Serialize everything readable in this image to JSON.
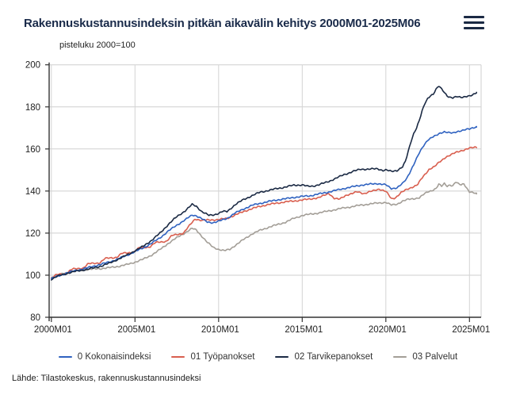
{
  "header": {
    "title": "Rakennuskustannusindeksin pitkän aikavälin kehitys 2000M01-2025M06",
    "menu_icon": "hamburger-menu-icon"
  },
  "chart_data": {
    "type": "line",
    "title": "Rakennuskustannusindeksin pitkän aikavälin kehitys 2000M01-2025M06",
    "unit_label": "pisteluku 2000=100",
    "xlabel": "",
    "ylabel": "pisteluku 2000=100",
    "ylim": [
      80,
      200
    ],
    "y_ticks": [
      80,
      100,
      120,
      140,
      160,
      180,
      200
    ],
    "x_ticks": [
      {
        "label": "2000M01",
        "year": 2000
      },
      {
        "label": "2005M01",
        "year": 2005
      },
      {
        "label": "2010M01",
        "year": 2010
      },
      {
        "label": "2015M01",
        "year": 2015
      },
      {
        "label": "2020M01",
        "year": 2020
      },
      {
        "label": "2025M01",
        "year": 2025
      }
    ],
    "x_range_years": [
      2000.0,
      2025.75
    ],
    "grid": true,
    "legend_position": "bottom",
    "series": [
      {
        "name": "0 Kokonaisindeksi",
        "color": "#2f62c0",
        "points": [
          [
            2000.0,
            98.4
          ],
          [
            2000.5,
            99.8
          ],
          [
            2001.0,
            101.3
          ],
          [
            2001.5,
            102.3
          ],
          [
            2002.0,
            103.2
          ],
          [
            2002.5,
            104.2
          ],
          [
            2003.0,
            105.3
          ],
          [
            2003.5,
            106.3
          ],
          [
            2004.0,
            107.8
          ],
          [
            2004.5,
            109.4
          ],
          [
            2005.0,
            111.2
          ],
          [
            2005.5,
            113.0
          ],
          [
            2006.0,
            115.2
          ],
          [
            2006.5,
            117.8
          ],
          [
            2007.0,
            121.0
          ],
          [
            2007.5,
            123.8
          ],
          [
            2008.0,
            126.3
          ],
          [
            2008.42,
            128.6
          ],
          [
            2008.67,
            128.3
          ],
          [
            2009.0,
            126.8
          ],
          [
            2009.33,
            125.2
          ],
          [
            2009.67,
            125.0
          ],
          [
            2010.0,
            125.6
          ],
          [
            2010.5,
            127.0
          ],
          [
            2011.0,
            129.6
          ],
          [
            2011.5,
            131.5
          ],
          [
            2012.0,
            133.2
          ],
          [
            2012.5,
            134.2
          ],
          [
            2013.0,
            135.0
          ],
          [
            2013.5,
            135.8
          ],
          [
            2014.0,
            136.3
          ],
          [
            2014.5,
            137.0
          ],
          [
            2015.0,
            137.4
          ],
          [
            2015.5,
            137.8
          ],
          [
            2016.0,
            138.6
          ],
          [
            2016.5,
            139.4
          ],
          [
            2017.0,
            140.3
          ],
          [
            2017.5,
            141.2
          ],
          [
            2018.0,
            142.0
          ],
          [
            2018.5,
            142.8
          ],
          [
            2019.0,
            143.2
          ],
          [
            2019.5,
            143.6
          ],
          [
            2020.0,
            142.9
          ],
          [
            2020.33,
            141.2
          ],
          [
            2020.67,
            141.6
          ],
          [
            2021.0,
            143.5
          ],
          [
            2021.25,
            146.0
          ],
          [
            2021.5,
            150.0
          ],
          [
            2021.75,
            154.0
          ],
          [
            2022.0,
            158.0
          ],
          [
            2022.25,
            161.5
          ],
          [
            2022.5,
            164.3
          ],
          [
            2022.75,
            165.5
          ],
          [
            2023.0,
            166.3
          ],
          [
            2023.25,
            167.5
          ],
          [
            2023.5,
            168.3
          ],
          [
            2023.75,
            167.8
          ],
          [
            2024.0,
            167.4
          ],
          [
            2024.25,
            168.2
          ],
          [
            2024.5,
            168.8
          ],
          [
            2024.75,
            169.2
          ],
          [
            2025.0,
            169.4
          ],
          [
            2025.42,
            170.6
          ]
        ]
      },
      {
        "name": "01 Työpanokset",
        "color": "#d95f4f",
        "points": [
          [
            2000.0,
            98.6
          ],
          [
            2000.3,
            100.2
          ],
          [
            2000.9,
            100.8
          ],
          [
            2001.2,
            102.8
          ],
          [
            2001.9,
            103.4
          ],
          [
            2002.2,
            105.4
          ],
          [
            2002.9,
            105.9
          ],
          [
            2003.2,
            107.9
          ],
          [
            2003.9,
            108.5
          ],
          [
            2004.2,
            110.3
          ],
          [
            2004.9,
            110.9
          ],
          [
            2005.2,
            112.8
          ],
          [
            2005.9,
            113.5
          ],
          [
            2006.2,
            115.4
          ],
          [
            2006.9,
            116.2
          ],
          [
            2007.2,
            118.8
          ],
          [
            2007.9,
            120.0
          ],
          [
            2008.2,
            123.0
          ],
          [
            2008.6,
            126.8
          ],
          [
            2009.0,
            126.0
          ],
          [
            2009.5,
            126.3
          ],
          [
            2010.0,
            126.4
          ],
          [
            2010.5,
            127.0
          ],
          [
            2011.0,
            128.6
          ],
          [
            2011.5,
            130.3
          ],
          [
            2012.0,
            131.6
          ],
          [
            2012.5,
            132.8
          ],
          [
            2013.0,
            133.6
          ],
          [
            2013.5,
            134.3
          ],
          [
            2014.0,
            134.8
          ],
          [
            2014.5,
            135.3
          ],
          [
            2015.0,
            135.7
          ],
          [
            2015.5,
            136.3
          ],
          [
            2016.0,
            136.8
          ],
          [
            2016.6,
            139.0
          ],
          [
            2016.9,
            136.5
          ],
          [
            2017.2,
            136.0
          ],
          [
            2017.6,
            138.0
          ],
          [
            2018.0,
            138.8
          ],
          [
            2018.3,
            139.7
          ],
          [
            2018.7,
            138.8
          ],
          [
            2019.0,
            139.5
          ],
          [
            2019.6,
            141.0
          ],
          [
            2020.0,
            139.8
          ],
          [
            2020.35,
            136.2
          ],
          [
            2020.6,
            137.0
          ],
          [
            2020.9,
            139.2
          ],
          [
            2021.2,
            140.5
          ],
          [
            2021.6,
            142.0
          ],
          [
            2021.9,
            143.0
          ],
          [
            2022.1,
            145.5
          ],
          [
            2022.4,
            148.5
          ],
          [
            2022.6,
            150.5
          ],
          [
            2022.9,
            151.5
          ],
          [
            2023.1,
            153.0
          ],
          [
            2023.4,
            155.0
          ],
          [
            2023.6,
            156.3
          ],
          [
            2023.9,
            157.2
          ],
          [
            2024.1,
            158.0
          ],
          [
            2024.4,
            159.0
          ],
          [
            2024.7,
            159.6
          ],
          [
            2025.0,
            160.3
          ],
          [
            2025.42,
            161.0
          ]
        ]
      },
      {
        "name": "02 Tarvikepanokset",
        "color": "#1b2a44",
        "points": [
          [
            2000.0,
            98.1
          ],
          [
            2000.5,
            99.9
          ],
          [
            2001.0,
            101.0
          ],
          [
            2001.5,
            101.9
          ],
          [
            2002.0,
            102.6
          ],
          [
            2002.5,
            103.4
          ],
          [
            2003.0,
            104.4
          ],
          [
            2003.5,
            105.8
          ],
          [
            2004.0,
            107.6
          ],
          [
            2004.5,
            109.5
          ],
          [
            2005.0,
            111.6
          ],
          [
            2005.5,
            113.8
          ],
          [
            2006.0,
            116.6
          ],
          [
            2006.5,
            120.0
          ],
          [
            2007.0,
            124.2
          ],
          [
            2007.5,
            127.8
          ],
          [
            2008.0,
            130.6
          ],
          [
            2008.42,
            133.6
          ],
          [
            2008.67,
            132.8
          ],
          [
            2009.0,
            130.2
          ],
          [
            2009.42,
            128.4
          ],
          [
            2009.75,
            128.8
          ],
          [
            2010.0,
            129.4
          ],
          [
            2010.25,
            130.3
          ],
          [
            2010.5,
            130.2
          ],
          [
            2011.0,
            133.6
          ],
          [
            2011.5,
            136.0
          ],
          [
            2012.0,
            137.8
          ],
          [
            2012.5,
            139.5
          ],
          [
            2013.0,
            140.3
          ],
          [
            2013.5,
            141.2
          ],
          [
            2014.0,
            141.9
          ],
          [
            2014.5,
            142.8
          ],
          [
            2015.0,
            142.9
          ],
          [
            2015.33,
            142.2
          ],
          [
            2015.67,
            142.4
          ],
          [
            2016.0,
            143.0
          ],
          [
            2016.5,
            144.3
          ],
          [
            2017.0,
            146.0
          ],
          [
            2017.5,
            147.8
          ],
          [
            2018.0,
            149.2
          ],
          [
            2018.5,
            150.4
          ],
          [
            2019.0,
            150.4
          ],
          [
            2019.5,
            150.6
          ],
          [
            2019.83,
            149.8
          ],
          [
            2020.0,
            150.0
          ],
          [
            2020.33,
            149.3
          ],
          [
            2020.67,
            149.8
          ],
          [
            2021.0,
            151.5
          ],
          [
            2021.17,
            154.0
          ],
          [
            2021.33,
            158.5
          ],
          [
            2021.5,
            163.5
          ],
          [
            2021.67,
            167.5
          ],
          [
            2021.83,
            170.0
          ],
          [
            2022.0,
            173.5
          ],
          [
            2022.17,
            178.0
          ],
          [
            2022.33,
            181.5
          ],
          [
            2022.5,
            184.0
          ],
          [
            2022.67,
            185.5
          ],
          [
            2022.83,
            186.0
          ],
          [
            2023.0,
            188.3
          ],
          [
            2023.17,
            189.8
          ],
          [
            2023.33,
            188.5
          ],
          [
            2023.5,
            187.0
          ],
          [
            2023.67,
            185.3
          ],
          [
            2023.83,
            184.6
          ],
          [
            2024.0,
            184.2
          ],
          [
            2024.25,
            184.8
          ],
          [
            2024.5,
            184.6
          ],
          [
            2024.75,
            185.0
          ],
          [
            2025.0,
            185.1
          ],
          [
            2025.17,
            185.4
          ],
          [
            2025.42,
            186.8
          ]
        ]
      },
      {
        "name": "03 Palvelut",
        "color": "#a39e97",
        "points": [
          [
            2000.0,
            98.9
          ],
          [
            2000.5,
            100.3
          ],
          [
            2001.0,
            101.4
          ],
          [
            2001.5,
            102.1
          ],
          [
            2002.0,
            102.6
          ],
          [
            2002.5,
            102.9
          ],
          [
            2003.0,
            103.2
          ],
          [
            2003.5,
            103.6
          ],
          [
            2004.0,
            104.2
          ],
          [
            2004.5,
            105.0
          ],
          [
            2005.0,
            106.2
          ],
          [
            2005.5,
            107.6
          ],
          [
            2006.0,
            109.6
          ],
          [
            2006.5,
            112.2
          ],
          [
            2007.0,
            115.2
          ],
          [
            2007.5,
            117.8
          ],
          [
            2008.0,
            120.2
          ],
          [
            2008.42,
            122.2
          ],
          [
            2008.67,
            121.5
          ],
          [
            2009.0,
            118.5
          ],
          [
            2009.33,
            115.5
          ],
          [
            2009.67,
            113.3
          ],
          [
            2010.0,
            112.3
          ],
          [
            2010.33,
            111.6
          ],
          [
            2010.67,
            112.3
          ],
          [
            2011.0,
            114.2
          ],
          [
            2011.5,
            117.0
          ],
          [
            2012.0,
            119.6
          ],
          [
            2012.5,
            121.4
          ],
          [
            2013.0,
            122.8
          ],
          [
            2013.5,
            124.0
          ],
          [
            2014.0,
            125.2
          ],
          [
            2014.5,
            127.0
          ],
          [
            2015.0,
            128.4
          ],
          [
            2015.5,
            129.0
          ],
          [
            2016.0,
            129.6
          ],
          [
            2016.5,
            130.4
          ],
          [
            2017.0,
            131.2
          ],
          [
            2017.5,
            132.0
          ],
          [
            2018.0,
            132.6
          ],
          [
            2018.5,
            133.3
          ],
          [
            2019.0,
            133.8
          ],
          [
            2019.5,
            134.3
          ],
          [
            2020.0,
            134.6
          ],
          [
            2020.33,
            133.3
          ],
          [
            2020.67,
            133.8
          ],
          [
            2021.0,
            135.2
          ],
          [
            2021.33,
            136.0
          ],
          [
            2021.67,
            136.4
          ],
          [
            2022.0,
            136.8
          ],
          [
            2022.25,
            138.3
          ],
          [
            2022.5,
            139.6
          ],
          [
            2022.75,
            140.3
          ],
          [
            2023.0,
            141.2
          ],
          [
            2023.17,
            143.2
          ],
          [
            2023.33,
            142.2
          ],
          [
            2023.5,
            143.6
          ],
          [
            2023.67,
            142.4
          ],
          [
            2023.83,
            143.0
          ],
          [
            2024.0,
            142.4
          ],
          [
            2024.17,
            144.2
          ],
          [
            2024.33,
            143.4
          ],
          [
            2024.5,
            143.0
          ],
          [
            2024.67,
            143.6
          ],
          [
            2024.83,
            141.5
          ],
          [
            2025.0,
            139.6
          ],
          [
            2025.17,
            139.2
          ],
          [
            2025.42,
            138.7
          ]
        ]
      }
    ]
  },
  "source": {
    "text": "Lähde: Tilastokeskus, rakennuskustannusindeksi"
  }
}
